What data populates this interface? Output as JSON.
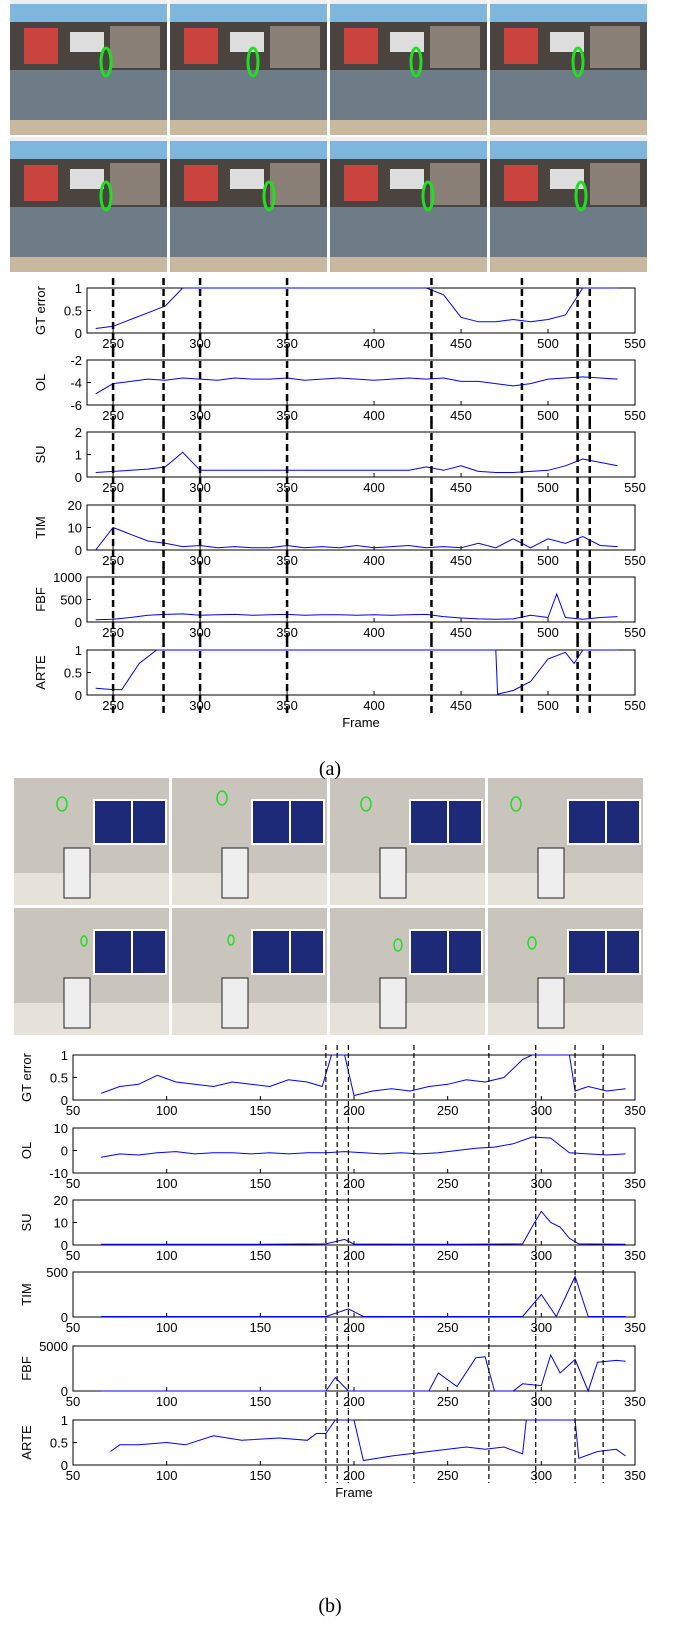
{
  "captions": [
    "(a)",
    "(b)"
  ],
  "markers": [
    [
      250,
      279,
      300,
      350,
      433,
      485,
      517,
      524
    ],
    [
      185,
      191,
      197,
      232,
      272,
      297,
      318,
      333
    ]
  ],
  "chart_data": [
    {
      "type": "line",
      "ylabel": "GT error",
      "color": "#0000ff",
      "xlim": [
        235,
        550
      ],
      "xticks": [
        250,
        300,
        350,
        400,
        450,
        500,
        550
      ],
      "ylim": [
        0,
        1
      ],
      "yticks": [
        0,
        0.5,
        1
      ],
      "x": [
        240,
        250,
        260,
        270,
        280,
        290,
        300,
        310,
        320,
        330,
        340,
        350,
        360,
        370,
        380,
        390,
        400,
        410,
        420,
        430,
        440,
        450,
        460,
        470,
        480,
        490,
        500,
        510,
        520,
        530,
        540
      ],
      "values": [
        0.1,
        0.15,
        0.3,
        0.45,
        0.6,
        1,
        1,
        1,
        1,
        1,
        1,
        1,
        1,
        1,
        1,
        1,
        1,
        1,
        1,
        1,
        0.85,
        0.35,
        0.25,
        0.25,
        0.3,
        0.25,
        0.3,
        0.4,
        1,
        1,
        1
      ]
    },
    {
      "type": "line",
      "ylabel": "OL",
      "color": "#0000ff",
      "xlim": [
        235,
        550
      ],
      "xticks": [
        250,
        300,
        350,
        400,
        450,
        500,
        550
      ],
      "ylim": [
        -6,
        -2
      ],
      "yticks": [
        -6,
        -4,
        -2
      ],
      "x": [
        240,
        250,
        260,
        270,
        280,
        290,
        300,
        310,
        320,
        330,
        340,
        350,
        360,
        370,
        380,
        390,
        400,
        410,
        420,
        430,
        440,
        450,
        460,
        470,
        480,
        490,
        500,
        510,
        520,
        530,
        540
      ],
      "values": [
        -5,
        -4.1,
        -3.9,
        -3.7,
        -3.8,
        -3.6,
        -3.7,
        -3.8,
        -3.6,
        -3.7,
        -3.7,
        -3.6,
        -3.8,
        -3.7,
        -3.6,
        -3.7,
        -3.8,
        -3.7,
        -3.6,
        -3.7,
        -3.6,
        -3.9,
        -3.9,
        -4.1,
        -4.3,
        -4.1,
        -3.7,
        -3.6,
        -3.5,
        -3.6,
        -3.7
      ]
    },
    {
      "type": "line",
      "ylabel": "SU",
      "color": "#0000ff",
      "xlim": [
        235,
        550
      ],
      "xticks": [
        250,
        300,
        350,
        400,
        450,
        500,
        550
      ],
      "ylim": [
        0,
        2
      ],
      "yticks": [
        0,
        1,
        2
      ],
      "x": [
        240,
        250,
        260,
        270,
        280,
        290,
        300,
        310,
        320,
        330,
        340,
        350,
        360,
        370,
        380,
        390,
        400,
        410,
        420,
        430,
        440,
        450,
        460,
        470,
        480,
        490,
        500,
        510,
        520,
        530,
        540
      ],
      "values": [
        0.2,
        0.25,
        0.3,
        0.35,
        0.45,
        1.1,
        0.3,
        0.3,
        0.3,
        0.3,
        0.3,
        0.3,
        0.3,
        0.3,
        0.3,
        0.3,
        0.3,
        0.3,
        0.3,
        0.45,
        0.3,
        0.5,
        0.25,
        0.2,
        0.2,
        0.25,
        0.3,
        0.5,
        0.8,
        0.65,
        0.5
      ]
    },
    {
      "type": "line",
      "ylabel": "TIM",
      "color": "#0000ff",
      "xlim": [
        235,
        550
      ],
      "xticks": [
        250,
        300,
        350,
        400,
        450,
        500,
        550
      ],
      "ylim": [
        0,
        20
      ],
      "yticks": [
        0,
        10,
        20
      ],
      "x": [
        240,
        250,
        260,
        270,
        280,
        290,
        300,
        310,
        320,
        330,
        340,
        350,
        360,
        370,
        380,
        390,
        400,
        410,
        420,
        430,
        440,
        450,
        460,
        470,
        480,
        490,
        500,
        510,
        520,
        530,
        540
      ],
      "values": [
        0,
        10,
        7,
        4,
        3,
        1.5,
        2,
        1,
        1.5,
        1,
        1,
        2,
        1,
        1.5,
        1,
        2,
        1,
        1.5,
        2,
        1,
        1.5,
        1,
        3,
        1,
        5,
        1,
        5,
        3,
        6,
        2,
        1.5
      ]
    },
    {
      "type": "line",
      "ylabel": "FBF",
      "color": "#0000ff",
      "xlim": [
        235,
        550
      ],
      "xticks": [
        250,
        300,
        350,
        400,
        450,
        500,
        550
      ],
      "ylim": [
        0,
        1000
      ],
      "yticks": [
        0,
        500,
        1000
      ],
      "x": [
        240,
        250,
        260,
        270,
        280,
        290,
        300,
        310,
        320,
        330,
        340,
        350,
        360,
        370,
        380,
        390,
        400,
        410,
        420,
        430,
        440,
        450,
        460,
        470,
        480,
        490,
        500,
        505,
        510,
        520,
        530,
        540
      ],
      "values": [
        50,
        60,
        100,
        150,
        170,
        180,
        150,
        160,
        170,
        150,
        160,
        170,
        150,
        160,
        160,
        150,
        160,
        150,
        160,
        170,
        120,
        90,
        70,
        60,
        70,
        150,
        100,
        620,
        100,
        60,
        100,
        120
      ]
    },
    {
      "type": "line",
      "ylabel": "ARTE",
      "xlabel": "Frame",
      "color": "#0000ff",
      "xlim": [
        235,
        550
      ],
      "xticks": [
        250,
        300,
        350,
        400,
        450,
        500,
        550
      ],
      "ylim": [
        0,
        1
      ],
      "yticks": [
        0,
        0.5,
        1
      ],
      "x": [
        240,
        250,
        255,
        265,
        275,
        300,
        350,
        400,
        450,
        470,
        471,
        480,
        490,
        500,
        510,
        515,
        520,
        540
      ],
      "values": [
        0.15,
        0.12,
        0.12,
        0.7,
        1,
        1,
        1,
        1,
        1,
        1,
        0.02,
        0.1,
        0.3,
        0.8,
        0.95,
        0.7,
        1,
        1
      ]
    },
    {
      "type": "line",
      "ylabel": "GT error",
      "color": "#0000ff",
      "xlim": [
        50,
        350
      ],
      "xticks": [
        50,
        100,
        150,
        200,
        250,
        300,
        350
      ],
      "ylim": [
        0,
        1
      ],
      "yticks": [
        0,
        0.5,
        1
      ],
      "x": [
        65,
        75,
        85,
        95,
        105,
        115,
        125,
        135,
        145,
        155,
        165,
        175,
        183,
        188,
        195,
        200,
        210,
        220,
        230,
        240,
        250,
        260,
        270,
        280,
        290,
        295,
        300,
        310,
        315,
        318,
        325,
        335,
        345
      ],
      "values": [
        0.15,
        0.3,
        0.35,
        0.55,
        0.4,
        0.35,
        0.3,
        0.4,
        0.35,
        0.3,
        0.45,
        0.4,
        0.3,
        1,
        1,
        0.1,
        0.2,
        0.25,
        0.2,
        0.3,
        0.35,
        0.45,
        0.4,
        0.5,
        0.9,
        1,
        1,
        1,
        1,
        0.2,
        0.3,
        0.2,
        0.25
      ]
    },
    {
      "type": "line",
      "ylabel": "OL",
      "color": "#0000ff",
      "xlim": [
        50,
        350
      ],
      "xticks": [
        50,
        100,
        150,
        200,
        250,
        300,
        350
      ],
      "ylim": [
        -10,
        10
      ],
      "yticks": [
        -10,
        0,
        10
      ],
      "x": [
        65,
        75,
        85,
        95,
        105,
        115,
        125,
        135,
        145,
        155,
        165,
        175,
        185,
        195,
        205,
        215,
        225,
        235,
        245,
        255,
        265,
        275,
        285,
        295,
        305,
        315,
        325,
        335,
        345
      ],
      "values": [
        -3,
        -1.5,
        -2,
        -1,
        -0.5,
        -1.5,
        -1,
        -1,
        -1.5,
        -1,
        -1.5,
        -1,
        -1,
        -0.5,
        -1,
        -1.5,
        -1,
        -1.5,
        -1,
        0,
        1,
        1.5,
        3,
        6,
        5.5,
        -1,
        -1.5,
        -2,
        -1.5
      ]
    },
    {
      "type": "line",
      "ylabel": "SU",
      "color": "#0000ff",
      "xlim": [
        50,
        350
      ],
      "xticks": [
        50,
        100,
        150,
        200,
        250,
        300,
        350
      ],
      "ylim": [
        0,
        20
      ],
      "yticks": [
        0,
        10,
        20
      ],
      "x": [
        65,
        100,
        150,
        185,
        195,
        200,
        250,
        290,
        295,
        300,
        305,
        310,
        315,
        320,
        345
      ],
      "values": [
        0.3,
        0.3,
        0.3,
        0.5,
        2.5,
        0.4,
        0.3,
        0.5,
        8,
        15,
        10,
        8,
        3,
        0.5,
        0.3
      ]
    },
    {
      "type": "line",
      "ylabel": "TIM",
      "color": "#0000ff",
      "xlim": [
        50,
        350
      ],
      "xticks": [
        50,
        100,
        150,
        200,
        250,
        300,
        350
      ],
      "ylim": [
        0,
        500
      ],
      "yticks": [
        0,
        500
      ],
      "x": [
        65,
        100,
        150,
        185,
        197,
        205,
        250,
        290,
        300,
        308,
        318,
        325,
        345
      ],
      "values": [
        5,
        5,
        5,
        5,
        90,
        5,
        5,
        5,
        250,
        5,
        450,
        5,
        5
      ]
    },
    {
      "type": "line",
      "ylabel": "FBF",
      "color": "#0000ff",
      "xlim": [
        50,
        350
      ],
      "xticks": [
        50,
        100,
        150,
        200,
        250,
        300,
        350
      ],
      "ylim": [
        0,
        5000
      ],
      "yticks": [
        0,
        5000
      ],
      "x": [
        65,
        100,
        150,
        185,
        190,
        197,
        240,
        245,
        255,
        265,
        270,
        275,
        285,
        290,
        300,
        305,
        310,
        318,
        325,
        330,
        340,
        345
      ],
      "values": [
        0,
        0,
        0,
        0,
        1500,
        0,
        0,
        2000,
        500,
        3700,
        3800,
        0,
        0,
        800,
        600,
        4000,
        2000,
        3500,
        0,
        3200,
        3400,
        3300
      ]
    },
    {
      "type": "line",
      "ylabel": "ARTE",
      "xlabel": "Frame",
      "color": "#0000ff",
      "xlim": [
        50,
        350
      ],
      "xticks": [
        50,
        100,
        150,
        200,
        250,
        300,
        350
      ],
      "ylim": [
        0,
        1
      ],
      "yticks": [
        0,
        0.5,
        1
      ],
      "x": [
        70,
        75,
        85,
        100,
        110,
        125,
        140,
        160,
        175,
        180,
        185,
        190,
        195,
        200,
        205,
        220,
        240,
        260,
        270,
        280,
        290,
        292,
        310,
        318,
        320,
        330,
        340,
        345
      ],
      "values": [
        0.3,
        0.45,
        0.45,
        0.5,
        0.45,
        0.65,
        0.55,
        0.6,
        0.55,
        0.7,
        0.7,
        1,
        1,
        1,
        0.1,
        0.2,
        0.3,
        0.4,
        0.35,
        0.4,
        0.25,
        1,
        1,
        1,
        0.15,
        0.3,
        0.35,
        0.2
      ]
    }
  ]
}
